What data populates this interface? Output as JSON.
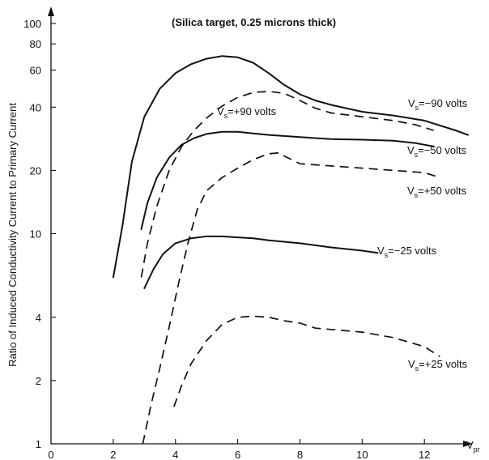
{
  "chart_data": {
    "type": "line",
    "title": "(Silica target, 0.25 microns thick)",
    "xlabel": "V",
    "xlabel_sub": "pr",
    "ylabel": "Ratio of Induced Conductivity Current to Primary Current",
    "xlim": [
      0,
      13.4
    ],
    "ylim": [
      1,
      100
    ],
    "yscale": "log",
    "grid": false,
    "x_ticks": [
      0,
      2,
      4,
      6,
      8,
      10,
      12
    ],
    "y_ticks": [
      1,
      2,
      4,
      10,
      20,
      40,
      60,
      80,
      100
    ],
    "series": [
      {
        "name": "Vs = -90 volts",
        "label_main": "V",
        "label_sub": "s",
        "label_rest": "=−90 volts",
        "style": "solid",
        "x": [
          2.0,
          2.3,
          2.6,
          3.0,
          3.5,
          4.0,
          4.5,
          5.0,
          5.5,
          6.0,
          6.5,
          7.0,
          7.5,
          8.0,
          8.5,
          9.0,
          10.0,
          11.0,
          12.0,
          13.0,
          13.4
        ],
        "y": [
          6.2,
          11.0,
          22.0,
          36.0,
          49.0,
          58.0,
          64.0,
          68.0,
          70.0,
          69.0,
          65.0,
          58.0,
          51.0,
          46.0,
          43.0,
          41.0,
          38.0,
          36.5,
          34.5,
          31.0,
          29.5
        ]
      },
      {
        "name": "Vs = +90 volts",
        "label_main": "V",
        "label_sub": "s",
        "label_rest": "=+90 volts",
        "style": "dashed",
        "x": [
          2.9,
          3.1,
          3.4,
          3.8,
          4.2,
          4.6,
          5.0,
          5.5,
          6.0,
          6.5,
          7.0,
          7.5,
          8.0,
          8.5,
          9.0,
          10.0,
          11.0,
          11.7,
          12.3
        ],
        "y": [
          6.2,
          9.0,
          13.5,
          20.0,
          26.0,
          31.0,
          35.5,
          40.5,
          44.5,
          47.0,
          47.5,
          46.5,
          43.0,
          39.5,
          37.5,
          36.0,
          34.5,
          33.0,
          31.0
        ]
      },
      {
        "name": "Vs = -50 volts",
        "label_main": "V",
        "label_sub": "s",
        "label_rest": "=−50 volts",
        "style": "solid",
        "x": [
          2.9,
          3.1,
          3.4,
          3.8,
          4.2,
          4.6,
          5.0,
          5.5,
          6.0,
          6.5,
          7.0,
          8.0,
          9.0,
          10.0,
          11.0,
          11.7,
          12.3
        ],
        "y": [
          10.5,
          14.0,
          18.5,
          23.0,
          26.5,
          28.5,
          29.8,
          30.5,
          30.5,
          30.0,
          29.5,
          28.8,
          28.2,
          28.0,
          27.7,
          27.0,
          26.0
        ]
      },
      {
        "name": "Vs = +50 volts",
        "label_main": "V",
        "label_sub": "s",
        "label_rest": "=+50 volts",
        "style": "dashed",
        "x": [
          2.95,
          3.2,
          3.5,
          3.8,
          4.1,
          4.4,
          4.7,
          5.0,
          5.5,
          6.0,
          6.5,
          7.0,
          7.3,
          7.6,
          8.0,
          9.0,
          10.0,
          11.0,
          12.0,
          12.5
        ],
        "y": [
          1.0,
          1.5,
          2.3,
          3.6,
          5.8,
          9.0,
          13.0,
          16.0,
          18.5,
          20.5,
          22.5,
          24.0,
          24.2,
          23.0,
          21.5,
          21.0,
          20.5,
          20.0,
          19.5,
          18.5
        ]
      },
      {
        "name": "Vs = -25 volts",
        "label_main": "V",
        "label_sub": "s",
        "label_rest": "=−25 volts",
        "style": "solid",
        "x": [
          3.0,
          3.3,
          3.6,
          4.0,
          4.5,
          5.0,
          5.5,
          6.0,
          6.5,
          7.0,
          8.0,
          9.0,
          10.0,
          10.5
        ],
        "y": [
          5.5,
          6.8,
          8.0,
          9.0,
          9.5,
          9.7,
          9.7,
          9.6,
          9.5,
          9.3,
          9.0,
          8.6,
          8.3,
          8.1
        ]
      },
      {
        "name": "Vs = +25 volts",
        "label_main": "V",
        "label_sub": "s",
        "label_rest": "=+25 volts",
        "style": "dashed",
        "x": [
          3.95,
          4.2,
          4.5,
          5.0,
          5.5,
          6.0,
          6.5,
          7.0,
          7.5,
          8.0,
          8.5,
          9.0,
          10.0,
          11.0,
          12.0,
          12.5
        ],
        "y": [
          1.5,
          1.9,
          2.4,
          3.1,
          3.7,
          4.0,
          4.05,
          4.0,
          3.85,
          3.75,
          3.55,
          3.5,
          3.4,
          3.2,
          2.9,
          2.6
        ]
      }
    ]
  }
}
